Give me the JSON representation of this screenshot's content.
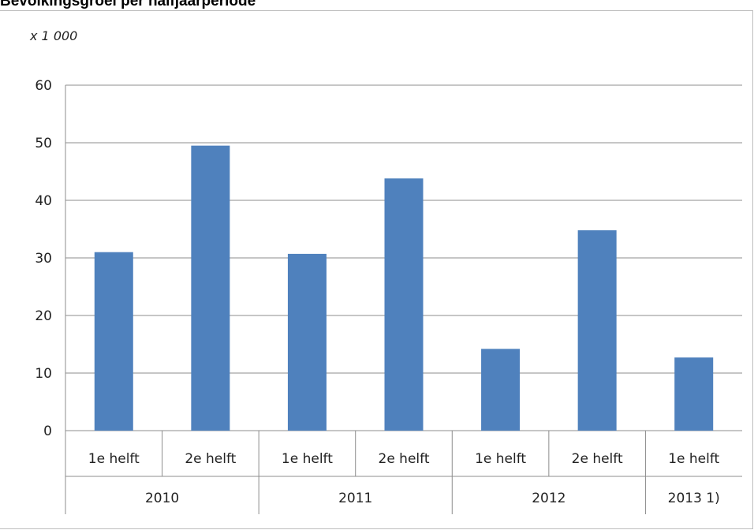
{
  "chart_data": {
    "type": "bar",
    "title": "Bevolkingsgroei per halfjaarperiode",
    "unit_label": "x 1 000",
    "ylim": [
      0,
      60
    ],
    "yticks": [
      0,
      10,
      20,
      30,
      40,
      50,
      60
    ],
    "grid": true,
    "categories": [
      "1e helft",
      "2e helft",
      "1e helft",
      "2e helft",
      "1e helft",
      "2e helft",
      "1e helft"
    ],
    "groups": [
      {
        "label": "2010",
        "span": 2
      },
      {
        "label": "2011",
        "span": 2
      },
      {
        "label": "2012",
        "span": 2
      },
      {
        "label": "2013 1)",
        "span": 1
      }
    ],
    "series": [
      {
        "values": [
          31.0,
          49.5,
          30.7,
          43.8,
          14.2,
          34.8,
          12.7
        ]
      }
    ],
    "bar_color": "#4f81bd",
    "grid_color": "#8c8c8c"
  }
}
